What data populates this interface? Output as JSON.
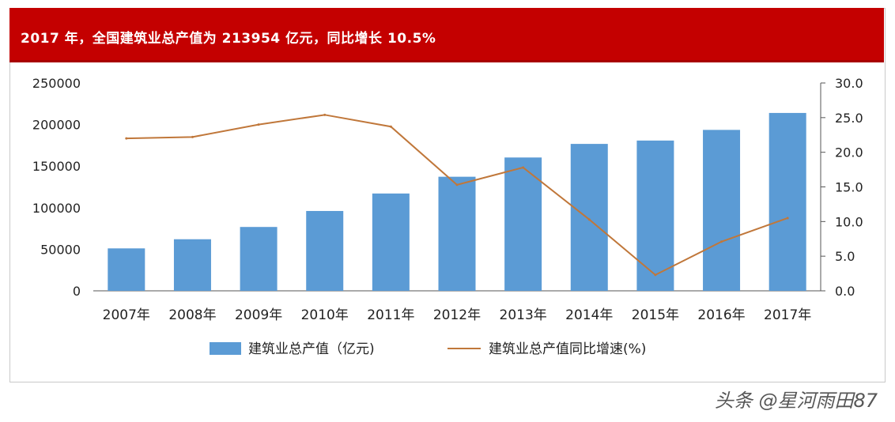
{
  "chart_data": {
    "type": "bar",
    "title": "2017 年，全国建筑业总产值为 213954 亿元，同比增长 10.5%",
    "categories": [
      "2007年",
      "2008年",
      "2009年",
      "2010年",
      "2011年",
      "2012年",
      "2013年",
      "2014年",
      "2015年",
      "2016年",
      "2017年"
    ],
    "series": [
      {
        "name": "建筑业总产值（亿元)",
        "type": "bar",
        "axis": "left",
        "color": "#5b9bd5",
        "values": [
          51044,
          62037,
          76808,
          96031,
          117060,
          137218,
          160366,
          176713,
          180757,
          193567,
          213954
        ]
      },
      {
        "name": "建筑业总产值同比增速(%)",
        "type": "line",
        "axis": "right",
        "color": "#c0773a",
        "values": [
          22.0,
          22.2,
          24.0,
          25.4,
          23.7,
          15.3,
          17.8,
          10.3,
          2.3,
          7.1,
          10.5
        ]
      }
    ],
    "ylim_left": [
      0,
      250000
    ],
    "yticks_left": [
      "0",
      "50000",
      "100000",
      "150000",
      "200000",
      "250000"
    ],
    "ylim_right": [
      0,
      30
    ],
    "yticks_right": [
      "0.0",
      "5.0",
      "10.0",
      "15.0",
      "20.0",
      "25.0",
      "30.0"
    ],
    "grid": false,
    "legend": "bottom"
  },
  "watermark": "头条 @星河雨田87"
}
